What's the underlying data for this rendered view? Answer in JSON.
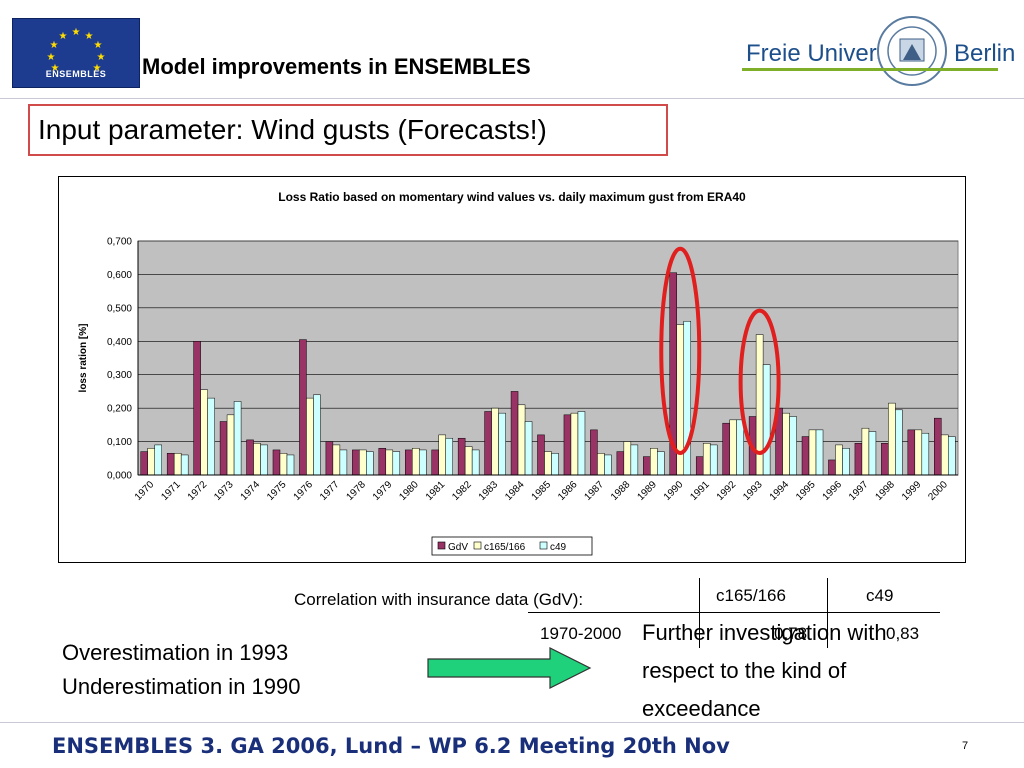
{
  "header": {
    "logo_text": "ENSEMBLES",
    "title": "Model improvements in ENSEMBLES",
    "university_name": "Freie Universität",
    "university_city": "Berlin"
  },
  "subtitle": "Input parameter: Wind gusts (Forecasts!)",
  "chart_data": {
    "type": "bar",
    "title": "Loss Ratio based on momentary wind values vs. daily maximum gust from ERA40",
    "ylabel": "loss ration [%]",
    "xlabel": "",
    "ylim": [
      0,
      0.7
    ],
    "yticks": [
      "0,000",
      "0,100",
      "0,200",
      "0,300",
      "0,400",
      "0,500",
      "0,600",
      "0,700"
    ],
    "grid": true,
    "legend_position": "bottom",
    "categories": [
      "1970",
      "1971",
      "1972",
      "1973",
      "1974",
      "1975",
      "1976",
      "1977",
      "1978",
      "1979",
      "1980",
      "1981",
      "1982",
      "1983",
      "1984",
      "1985",
      "1986",
      "1987",
      "1988",
      "1989",
      "1990",
      "1991",
      "1992",
      "1993",
      "1994",
      "1995",
      "1996",
      "1997",
      "1998",
      "1999",
      "2000"
    ],
    "series": [
      {
        "name": "GdV",
        "color": "#993366",
        "values": [
          0.07,
          0.065,
          0.4,
          0.16,
          0.105,
          0.075,
          0.405,
          0.1,
          0.075,
          0.08,
          0.075,
          0.075,
          0.11,
          0.19,
          0.25,
          0.12,
          0.18,
          0.135,
          0.07,
          0.055,
          0.605,
          0.055,
          0.155,
          0.175,
          0.2,
          0.115,
          0.045,
          0.095,
          0.095,
          0.135,
          0.17
        ]
      },
      {
        "name": "c165/166",
        "color": "#ffffcc",
        "values": [
          0.08,
          0.065,
          0.255,
          0.18,
          0.095,
          0.065,
          0.23,
          0.09,
          0.075,
          0.075,
          0.08,
          0.12,
          0.085,
          0.2,
          0.21,
          0.07,
          0.185,
          0.065,
          0.1,
          0.08,
          0.45,
          0.095,
          0.165,
          0.42,
          0.185,
          0.135,
          0.09,
          0.14,
          0.215,
          0.135,
          0.12
        ]
      },
      {
        "name": "c49",
        "color": "#ccffff",
        "values": [
          0.09,
          0.06,
          0.23,
          0.22,
          0.09,
          0.06,
          0.24,
          0.075,
          0.07,
          0.07,
          0.075,
          0.11,
          0.075,
          0.185,
          0.16,
          0.065,
          0.19,
          0.06,
          0.09,
          0.07,
          0.46,
          0.09,
          0.165,
          0.33,
          0.175,
          0.135,
          0.08,
          0.13,
          0.195,
          0.125,
          0.115
        ]
      }
    ],
    "highlighted_years": [
      "1990",
      "1993"
    ],
    "highlight_color": "#e01f1f"
  },
  "correlation": {
    "label": "Correlation with insurance data (GdV):",
    "headers": [
      "c165/166",
      "c49"
    ],
    "period": "1970-2000",
    "values": [
      "0,78",
      "0,83"
    ]
  },
  "notes": [
    "Overestimation in 1993",
    "Underestimation in 1990"
  ],
  "conclusion": "Further investigation with respect to the kind of exceedance",
  "arrow_color": "#1fd17a",
  "footer": "ENSEMBLES 3. GA 2006, Lund – WP 6.2 Meeting 20th Nov",
  "page_number": "7"
}
